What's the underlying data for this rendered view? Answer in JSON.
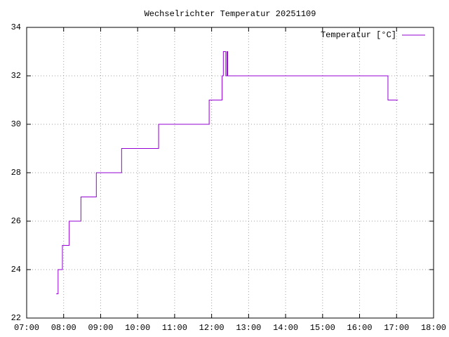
{
  "chart_data": {
    "type": "line",
    "title": "Wechselrichter Temperatur 20251109",
    "x": [
      "07:48",
      "07:51",
      "07:58",
      "08:09",
      "08:28",
      "08:53",
      "09:34",
      "10:34",
      "11:56",
      "12:17",
      "12:19",
      "12:23",
      "12:25",
      "12:26",
      "16:46",
      "17:02"
    ],
    "series": [
      {
        "name": "Temperatur [°C]",
        "color": "#9400d3",
        "values": [
          23,
          24,
          25,
          26,
          27,
          28,
          29,
          30,
          31,
          32,
          33,
          32,
          33,
          32,
          31,
          31
        ]
      }
    ],
    "xlim": [
      "07:00",
      "18:00"
    ],
    "xticks": [
      "07:00",
      "08:00",
      "09:00",
      "10:00",
      "11:00",
      "12:00",
      "13:00",
      "14:00",
      "15:00",
      "16:00",
      "17:00",
      "18:00"
    ],
    "ylim": [
      22,
      34
    ],
    "yticks": [
      22,
      24,
      26,
      28,
      30,
      32,
      34
    ],
    "grid": true,
    "steps": true,
    "legend": "top-right"
  }
}
